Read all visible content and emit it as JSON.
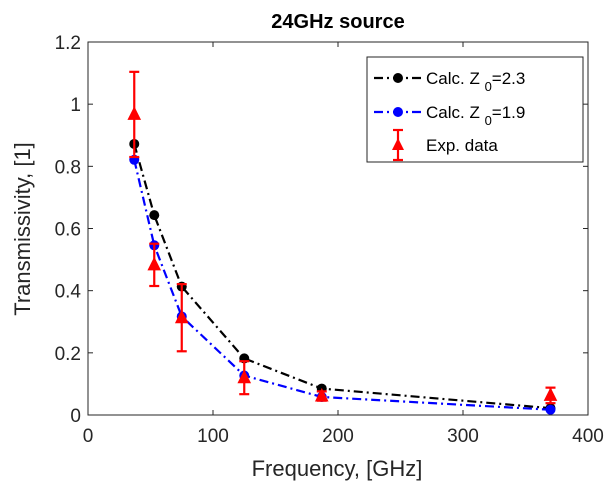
{
  "chart_data": {
    "type": "line",
    "title": "24GHz source",
    "xlabel": "Frequency, [GHz]",
    "ylabel": "Transmissivity, [1]",
    "xlim": [
      0,
      400
    ],
    "ylim": [
      0,
      1.2
    ],
    "xticks": [
      0,
      100,
      200,
      300,
      400
    ],
    "yticks": [
      0,
      0.2,
      0.4,
      0.6,
      0.8,
      1,
      1.2
    ],
    "xtick_labels": [
      "0",
      "100",
      "200",
      "300",
      "400"
    ],
    "ytick_labels": [
      "0",
      "0.2",
      "0.4",
      "0.6",
      "0.8",
      "1",
      "1.2"
    ],
    "grid": false,
    "legend_position": "top-right",
    "series": [
      {
        "name_main": "Calc. Z",
        "name_sub": "0",
        "name_tail": "=2.3",
        "color": "#000000",
        "style": "dash-dot",
        "marker": "circle",
        "x": [
          37,
          53,
          75,
          125,
          187,
          370
        ],
        "y": [
          0.872,
          0.643,
          0.413,
          0.182,
          0.085,
          0.022
        ]
      },
      {
        "name_main": "Calc. Z",
        "name_sub": "0",
        "name_tail": "=1.9",
        "color": "#0000ff",
        "style": "dash-dot",
        "marker": "circle",
        "x": [
          37,
          53,
          75,
          125,
          187,
          370
        ],
        "y": [
          0.821,
          0.546,
          0.317,
          0.127,
          0.058,
          0.017
        ]
      },
      {
        "name": "Exp. data",
        "color": "#ff0000",
        "style": "errorbar",
        "marker": "triangle",
        "x": [
          37,
          53,
          75,
          125,
          187,
          370
        ],
        "y": [
          0.967,
          0.483,
          0.313,
          0.12,
          0.061,
          0.063
        ],
        "err": [
          0.137,
          0.068,
          0.108,
          0.053,
          0.015,
          0.025
        ]
      }
    ]
  }
}
